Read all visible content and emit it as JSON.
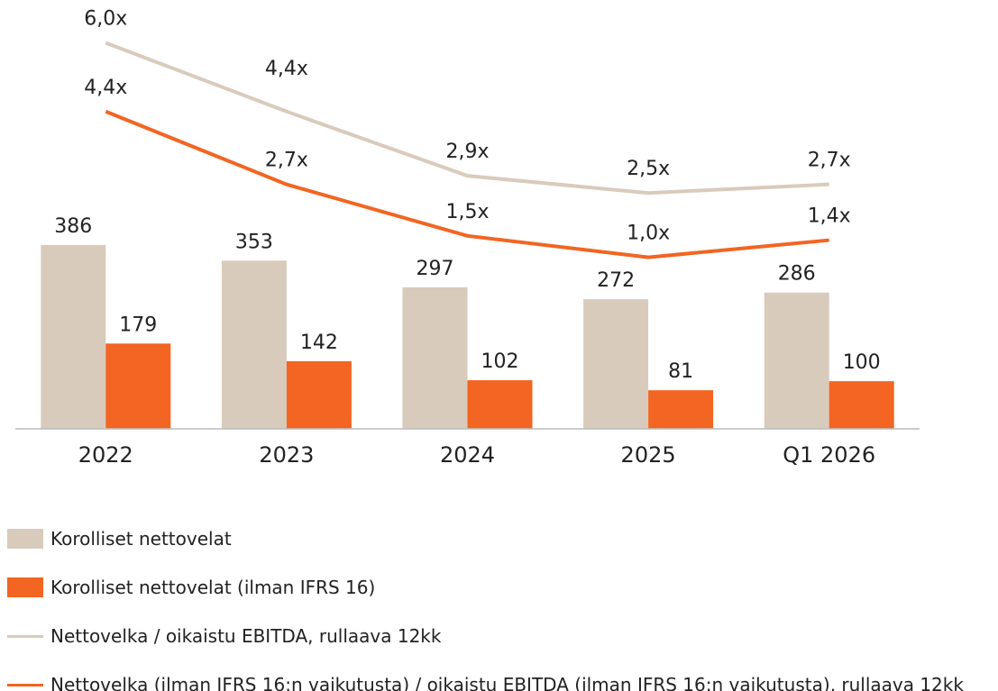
{
  "chart_data": {
    "type": "bar",
    "categories": [
      "2022",
      "2023",
      "2024",
      "2025",
      "Q1 2026"
    ],
    "series": [
      {
        "name": "Korolliset nettovelat",
        "type": "bar",
        "color": "#d9cbbb",
        "values": [
          386,
          353,
          297,
          272,
          286
        ]
      },
      {
        "name": "Korolliset nettovelat (ilman IFRS 16)",
        "type": "bar",
        "color": "#f26522",
        "values": [
          179,
          142,
          102,
          81,
          100
        ]
      },
      {
        "name": "Nettovelka / oikaistu EBITDA, rullaava 12kk",
        "type": "line",
        "axis": "y2",
        "color": "#d9cbbb",
        "values": [
          6.0,
          4.4,
          2.9,
          2.5,
          2.7
        ],
        "value_labels": [
          "6,0x",
          "4,4x",
          "2,9x",
          "2,5x",
          "2,7x"
        ]
      },
      {
        "name": "Nettovelka (ilman IFRS 16:n vaikutusta) / oikaistu EBITDA (ilman IFRS 16:n vaikutusta), rullaava 12kk",
        "type": "line",
        "axis": "y2",
        "color": "#f26522",
        "values": [
          4.4,
          2.7,
          1.5,
          1.0,
          1.4
        ],
        "value_labels": [
          "4,4x",
          "2,7x",
          "1,5x",
          "1,0x",
          "1,4x"
        ]
      }
    ],
    "ylim": [
      0,
      900
    ],
    "y2lim": [
      -3,
      7
    ]
  }
}
